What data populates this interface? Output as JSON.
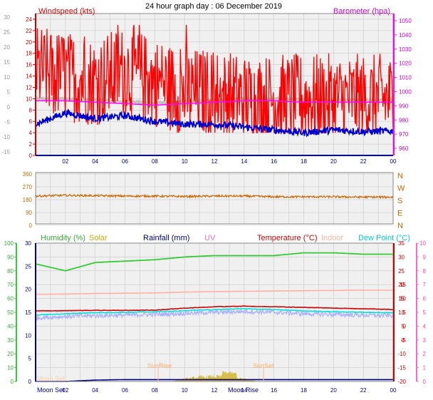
{
  "title": "24 hour graph day : 06 December 2019",
  "colors": {
    "wind": "#ff0000",
    "wind_gust": "#e00000",
    "wind_avg": "#0000cc",
    "baro": "#ff00ff",
    "baro_grey": "#c0c0c0",
    "dir": "#cc6600",
    "humidity": "#33cc33",
    "solar": "#ccaa00",
    "rain": "#000080",
    "uv": "#ff66cc",
    "temp": "#cc0000",
    "indoor": "#ffb0a0",
    "dew": "#00e0e0",
    "grid": "#c8c8c8",
    "plot_bg": "#f0f0f0",
    "sunlabel": "#ffaa66",
    "moonlabel": "#000099"
  },
  "panel1": {
    "title_left": "Windspeed (kts)",
    "title_right": "Barometer (hpa)",
    "left_ticks": [
      "24",
      "22",
      "20",
      "18",
      "16",
      "14",
      "12",
      "10",
      "8",
      "6",
      "4",
      "2",
      "0"
    ],
    "outer_ticks": [
      "30",
      "25",
      "20",
      "15",
      "10",
      "5",
      "0",
      "-5",
      "-10",
      "-15"
    ],
    "right_ticks": [
      "1050",
      "1040",
      "1030",
      "1020",
      "1010",
      "1000",
      "990",
      "980",
      "970",
      "960"
    ]
  },
  "panel2": {
    "left_ticks": [
      "360",
      "270",
      "180",
      "90",
      "0"
    ],
    "right_labels": [
      "N",
      "W",
      "S",
      "E",
      "N"
    ]
  },
  "panel3": {
    "legend": {
      "humidity": "Humidity (%)",
      "solar": "Solar",
      "rain": "Rainfall (mm)",
      "uv": "UV",
      "temp": "Temperature (°C)",
      "indoor": "Indoor",
      "dew": "Dew Point (°C)"
    },
    "humidity_ticks": [
      "100",
      "90",
      "80",
      "70",
      "60",
      "50",
      "40",
      "30",
      "20",
      "10",
      "0"
    ],
    "rain_ticks": [
      "30",
      "25",
      "20",
      "15",
      "10",
      "5",
      "0"
    ],
    "temp_ticks": [
      "35",
      "30",
      "25",
      "20",
      "15",
      "10",
      "5",
      "0"
    ],
    "right_ticks": [
      "30",
      "25",
      "20",
      "15",
      "10",
      "5",
      "0",
      "-5",
      "-10",
      "-15",
      "-20"
    ],
    "uv_ticks": [
      "10",
      "9",
      "8",
      "7",
      "6",
      "5",
      "4",
      "3",
      "2",
      "1",
      "0"
    ],
    "sunrise": "SunRise",
    "sunset": "SunSet",
    "moonset": "Moon Set",
    "moonrise": "Moon Rise"
  },
  "x_ticks": [
    "02",
    "04",
    "06",
    "08",
    "10",
    "12",
    "14",
    "16",
    "18",
    "20",
    "22",
    "00"
  ],
  "chart_data": [
    {
      "type": "line",
      "title": "24 hour graph day : 06 December 2019",
      "x": [
        "00",
        "02",
        "04",
        "06",
        "08",
        "10",
        "12",
        "14",
        "16",
        "18",
        "20",
        "22",
        "00"
      ],
      "series": [
        {
          "name": "Windspeed (kts)",
          "values": [
            15,
            14,
            13,
            15,
            13,
            11,
            11,
            10,
            10,
            10,
            10,
            10,
            10
          ]
        },
        {
          "name": "Barometer (hpa)",
          "values": [
            995,
            995,
            994,
            993,
            992,
            993,
            994,
            995,
            995,
            994,
            994,
            994,
            994
          ]
        }
      ],
      "ylabel": "Windspeed (kts)",
      "ylim": [
        0,
        25
      ]
    },
    {
      "type": "line",
      "x": [
        "00",
        "02",
        "04",
        "06",
        "08",
        "10",
        "12",
        "14",
        "16",
        "18",
        "20",
        "22",
        "00"
      ],
      "series": [
        {
          "name": "Wind direction",
          "values": [
            205,
            210,
            208,
            205,
            205,
            202,
            205,
            205,
            200,
            200,
            200,
            198,
            198
          ]
        }
      ],
      "ylim": [
        0,
        360
      ]
    },
    {
      "type": "line",
      "x": [
        "00",
        "02",
        "04",
        "06",
        "08",
        "10",
        "12",
        "14",
        "16",
        "18",
        "20",
        "22",
        "00"
      ],
      "series": [
        {
          "name": "Humidity (%)",
          "values": [
            85,
            80,
            86,
            87,
            88,
            90,
            91,
            91,
            91,
            93,
            93,
            92,
            92
          ]
        },
        {
          "name": "Temperature (°C)",
          "values": [
            5.5,
            5.6,
            5.7,
            5.7,
            5.8,
            6.5,
            7.0,
            7.2,
            7.0,
            6.8,
            6.5,
            6.3,
            6.0
          ]
        },
        {
          "name": "Indoor",
          "values": [
            11.5,
            11.6,
            11.8,
            11.9,
            12.0,
            12.3,
            12.5,
            12.6,
            12.7,
            12.8,
            12.9,
            13.0,
            13.0
          ]
        },
        {
          "name": "Dew Point (°C)",
          "values": [
            4.0,
            4.5,
            4.8,
            5.0,
            5.2,
            5.6,
            6.0,
            6.3,
            6.0,
            5.5,
            5.2,
            5.0,
            4.8
          ]
        },
        {
          "name": "Solar",
          "values": [
            0,
            0,
            0,
            0,
            0,
            2,
            6,
            4,
            0,
            0,
            0,
            0,
            0
          ]
        },
        {
          "name": "Rainfall (mm)",
          "values": [
            0,
            0,
            0.3,
            0.4,
            0.4,
            0.4,
            0.4,
            0.4,
            0.4,
            0.4,
            0.4,
            0.4,
            0.4
          ]
        }
      ]
    }
  ]
}
